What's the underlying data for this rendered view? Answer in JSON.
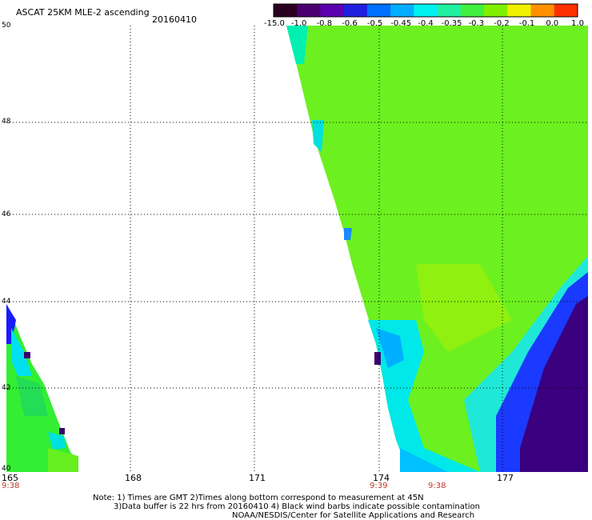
{
  "title": "ASCAT 25KM MLE-2 ascending",
  "date": "20160410",
  "colorbar": {
    "labels": [
      "-15.0",
      "-1.0",
      "-0.8",
      "-0.6",
      "-0.5",
      "-0.45",
      "-0.4",
      "-0.35",
      "-0.3",
      "-0.2",
      "-0.1",
      "0.0",
      "1.0"
    ],
    "colors": [
      "#2a0020",
      "#4a0070",
      "#5c00b0",
      "#2020e0",
      "#0070ff",
      "#00b0ff",
      "#00f0f0",
      "#20f0a0",
      "#40f040",
      "#80f000",
      "#f0f000",
      "#ff9000",
      "#ff3000"
    ]
  },
  "latitudes": [
    "50",
    "48",
    "46",
    "44",
    "42",
    "40"
  ],
  "longitudes": [
    "165",
    "168",
    "171",
    "174",
    "177"
  ],
  "times": [
    "9:38",
    "9:39",
    "9:38"
  ],
  "notes": {
    "line1": "Note: 1) Times are GMT 2)Times along bottom correspond to measurement at 45N",
    "line2": "3)Data buffer is 22 hrs from 20160410 4) Black wind barbs indicate possible contamination",
    "line3": "NOAA/NESDIS/Center for Satellite Applications and Research"
  }
}
